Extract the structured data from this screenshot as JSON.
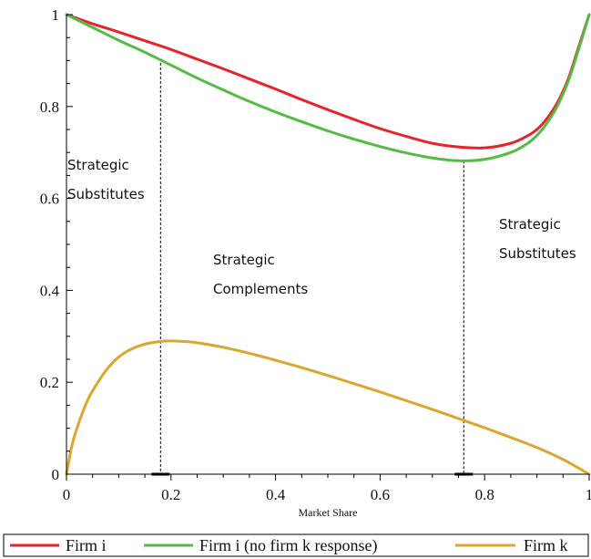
{
  "chart_data": {
    "type": "line",
    "title": "",
    "xlabel": "Market Share",
    "ylabel": "",
    "xlim": [
      0,
      1
    ],
    "ylim": [
      0,
      1
    ],
    "x_ticks": [
      0,
      0.2,
      0.4,
      0.6,
      0.8,
      1
    ],
    "x_tick_labels": [
      "0",
      "0.2",
      "0.4",
      "0.6",
      "0.8",
      "1"
    ],
    "y_ticks": [
      0,
      0.2,
      0.4,
      0.6,
      0.8,
      1
    ],
    "y_tick_labels": [
      "0",
      "0.2",
      "0.4",
      "0.6",
      "0.8",
      "1"
    ],
    "grid": false,
    "legend_position": "bottom",
    "series": [
      {
        "name": "Firm i",
        "color": "#e8232a",
        "x": [
          0,
          0.05,
          0.1,
          0.15,
          0.2,
          0.25,
          0.3,
          0.35,
          0.4,
          0.45,
          0.5,
          0.55,
          0.6,
          0.65,
          0.7,
          0.75,
          0.8,
          0.85,
          0.88,
          0.9,
          0.92,
          0.94,
          0.96,
          0.98,
          1.0
        ],
        "y": [
          1.0,
          0.98,
          0.962,
          0.943,
          0.924,
          0.903,
          0.882,
          0.86,
          0.838,
          0.815,
          0.793,
          0.772,
          0.752,
          0.735,
          0.72,
          0.712,
          0.71,
          0.72,
          0.735,
          0.75,
          0.775,
          0.81,
          0.86,
          0.93,
          1.0
        ]
      },
      {
        "name": "Firm i (no firm k response)",
        "color": "#55bb46",
        "x": [
          0,
          0.05,
          0.1,
          0.15,
          0.2,
          0.25,
          0.3,
          0.35,
          0.4,
          0.45,
          0.5,
          0.55,
          0.6,
          0.65,
          0.7,
          0.75,
          0.8,
          0.85,
          0.88,
          0.9,
          0.92,
          0.94,
          0.96,
          0.98,
          1.0
        ],
        "y": [
          1.0,
          0.972,
          0.944,
          0.918,
          0.89,
          0.862,
          0.836,
          0.811,
          0.788,
          0.767,
          0.747,
          0.729,
          0.713,
          0.699,
          0.688,
          0.682,
          0.685,
          0.7,
          0.718,
          0.737,
          0.765,
          0.803,
          0.855,
          0.925,
          1.0
        ]
      },
      {
        "name": "Firm k",
        "color": "#dba62c",
        "x": [
          0,
          0.01,
          0.02,
          0.04,
          0.06,
          0.08,
          0.1,
          0.12,
          0.15,
          0.18,
          0.2,
          0.22,
          0.25,
          0.3,
          0.35,
          0.4,
          0.45,
          0.5,
          0.55,
          0.6,
          0.65,
          0.7,
          0.75,
          0.8,
          0.85,
          0.9,
          0.95,
          1.0
        ],
        "y": [
          0,
          0.06,
          0.1,
          0.16,
          0.2,
          0.232,
          0.255,
          0.27,
          0.283,
          0.289,
          0.29,
          0.289,
          0.286,
          0.276,
          0.263,
          0.248,
          0.232,
          0.215,
          0.197,
          0.179,
          0.16,
          0.141,
          0.121,
          0.101,
          0.08,
          0.058,
          0.032,
          0.0
        ]
      }
    ],
    "reference_lines": [
      {
        "x": 0.18,
        "y_top": 0.895
      },
      {
        "x": 0.76,
        "y_top": 0.682
      }
    ],
    "annotations": [
      {
        "lines": [
          "Strategic",
          "Substitutes"
        ]
      },
      {
        "lines": [
          "Strategic",
          "Complements"
        ]
      },
      {
        "lines": [
          "Strategic",
          "Substitutes"
        ]
      }
    ]
  }
}
